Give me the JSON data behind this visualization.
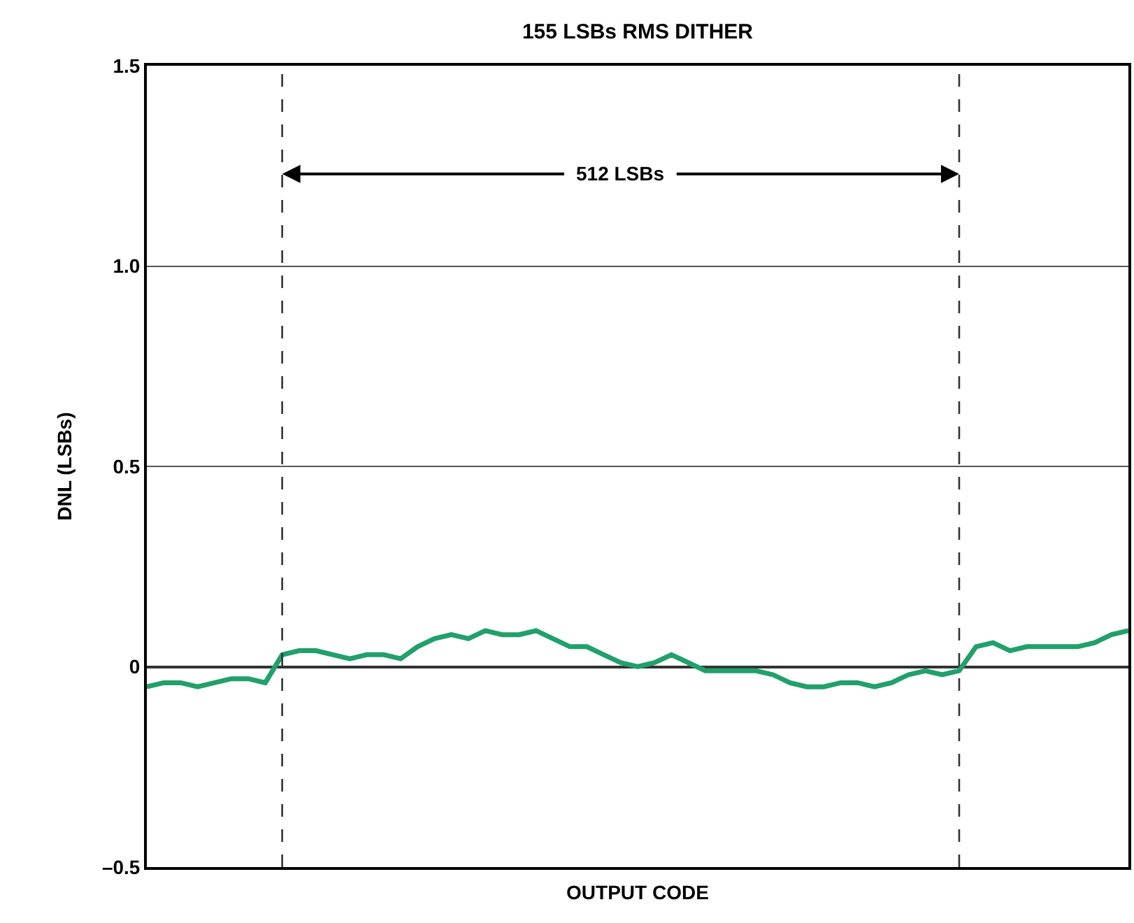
{
  "chart_data": {
    "type": "line",
    "title": "155 LSBs RMS DITHER",
    "xlabel": "OUTPUT CODE",
    "ylabel": "DNL (LSBs)",
    "categories": [
      null,
      null,
      null,
      null,
      null,
      null,
      null,
      null,
      null,
      null,
      null,
      null,
      null,
      null,
      null,
      null,
      null,
      null,
      null,
      null,
      null,
      null,
      null,
      null,
      null,
      null,
      null,
      null,
      null,
      null,
      null,
      null,
      null,
      null,
      null,
      null,
      null,
      null,
      null,
      null,
      null,
      null,
      null,
      null,
      null,
      null,
      null,
      null,
      null,
      null,
      null,
      null,
      null,
      null,
      null,
      null,
      null,
      null,
      null
    ],
    "series": [
      {
        "color": "#22a06b",
        "values": [
          -0.05,
          -0.04,
          -0.04,
          -0.05,
          -0.04,
          -0.03,
          -0.03,
          -0.04,
          0.03,
          0.04,
          0.04,
          0.03,
          0.02,
          0.03,
          0.03,
          0.02,
          0.05,
          0.07,
          0.08,
          0.07,
          0.09,
          0.08,
          0.08,
          0.09,
          0.07,
          0.05,
          0.05,
          0.03,
          0.01,
          0.0,
          0.01,
          0.03,
          0.01,
          -0.01,
          -0.01,
          -0.01,
          -0.01,
          -0.02,
          -0.04,
          -0.05,
          -0.05,
          -0.04,
          -0.04,
          -0.05,
          -0.04,
          -0.02,
          -0.01,
          -0.02,
          -0.01,
          0.05,
          0.06,
          0.04,
          0.05,
          0.05,
          0.05,
          0.05,
          0.06,
          0.08,
          0.09
        ]
      }
    ],
    "ylim": [
      -0.5,
      1.5
    ],
    "yticks": [
      {
        "value": -0.5,
        "label": "–0.5"
      },
      0,
      0.5,
      {
        "value": 1,
        "label": "1.0"
      },
      1.5
    ],
    "annotations": [
      "512 LSBs"
    ],
    "grid": "y",
    "tick_labels": "y",
    "marker": "none",
    "line_style": "solid"
  }
}
